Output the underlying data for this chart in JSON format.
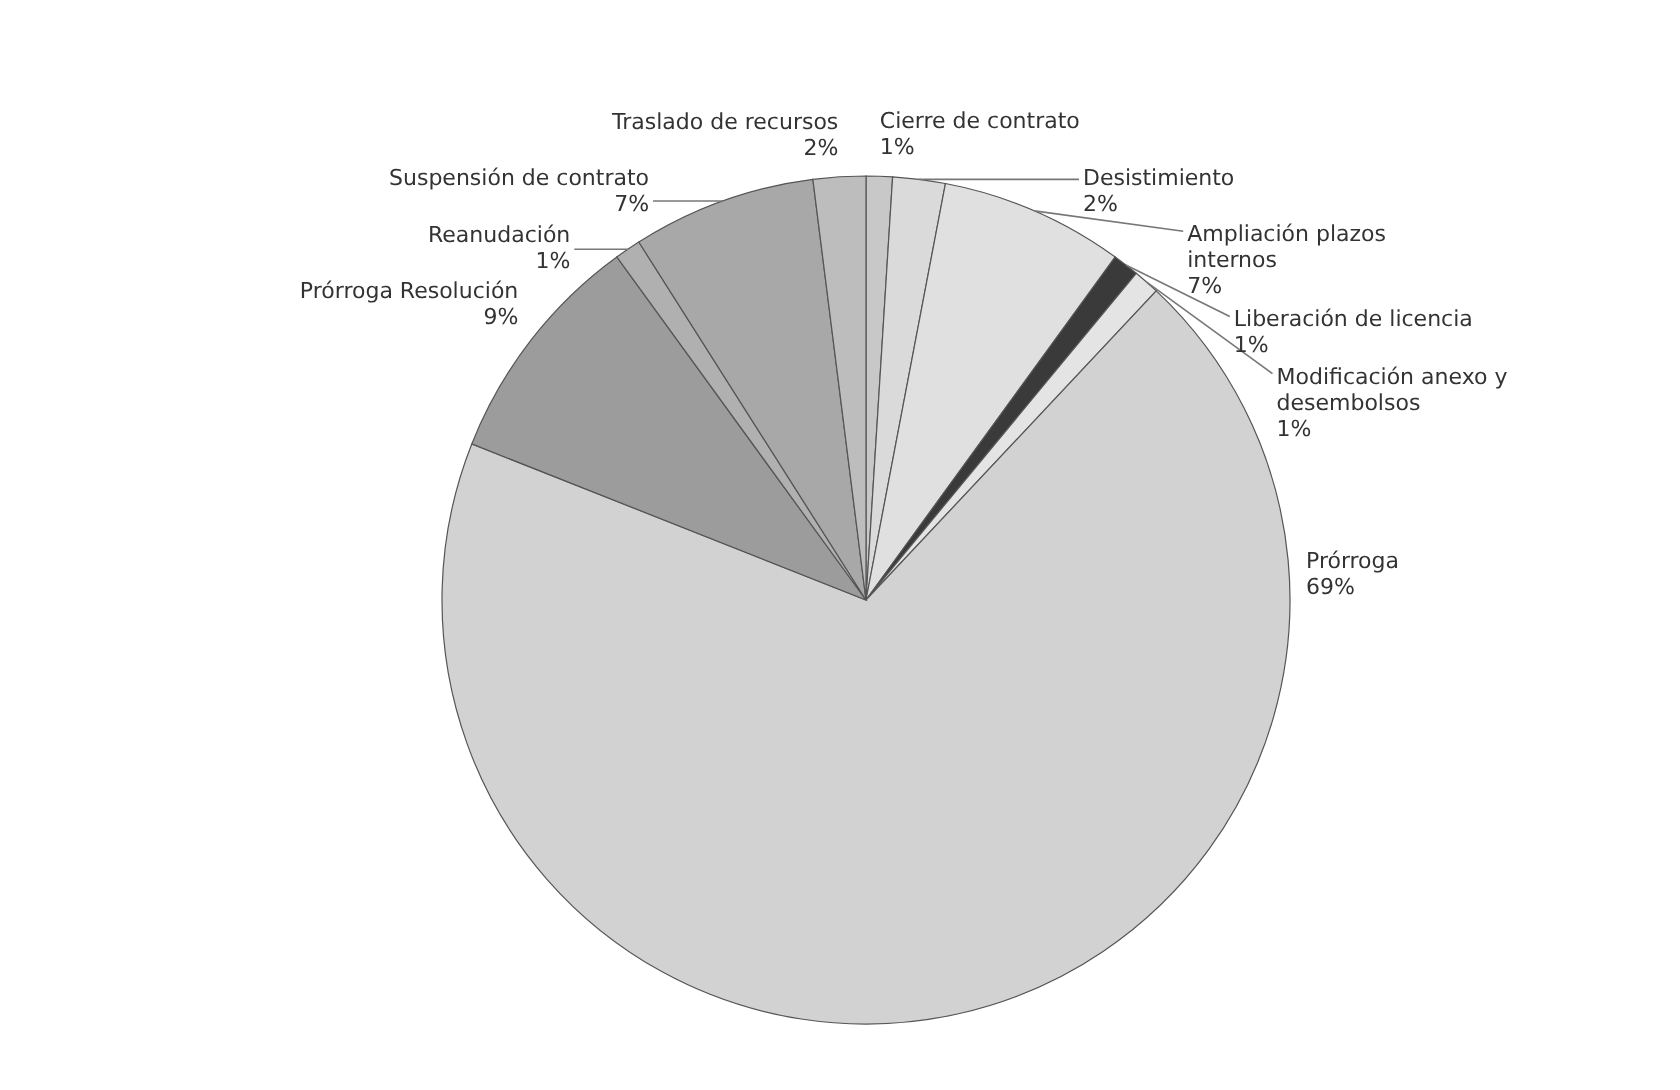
{
  "chart_data": {
    "type": "pie",
    "categories": [
      "Cierre de contrato",
      "Desistimiento",
      "Ampliación plazos internos",
      "Liberación de licencia",
      "Modificación anexo y desembolsos",
      "Prórroga",
      "Prórroga Resolución",
      "Reanudación",
      "Suspensión de contrato",
      "Traslado de recursos"
    ],
    "values": [
      1,
      2,
      7,
      1,
      1,
      69,
      9,
      1,
      7,
      2
    ],
    "value_labels": [
      "1%",
      "2%",
      "7%",
      "1%",
      "1%",
      "69%",
      "9%",
      "1%",
      "7%",
      "2%"
    ],
    "colors": [
      "#c8c8c8",
      "#dadada",
      "#e0e0e0",
      "#3a3a3a",
      "#e4e4e4",
      "#d2d2d2",
      "#9c9c9c",
      "#b0b0b0",
      "#a8a8a8",
      "#bdbdbd"
    ]
  }
}
